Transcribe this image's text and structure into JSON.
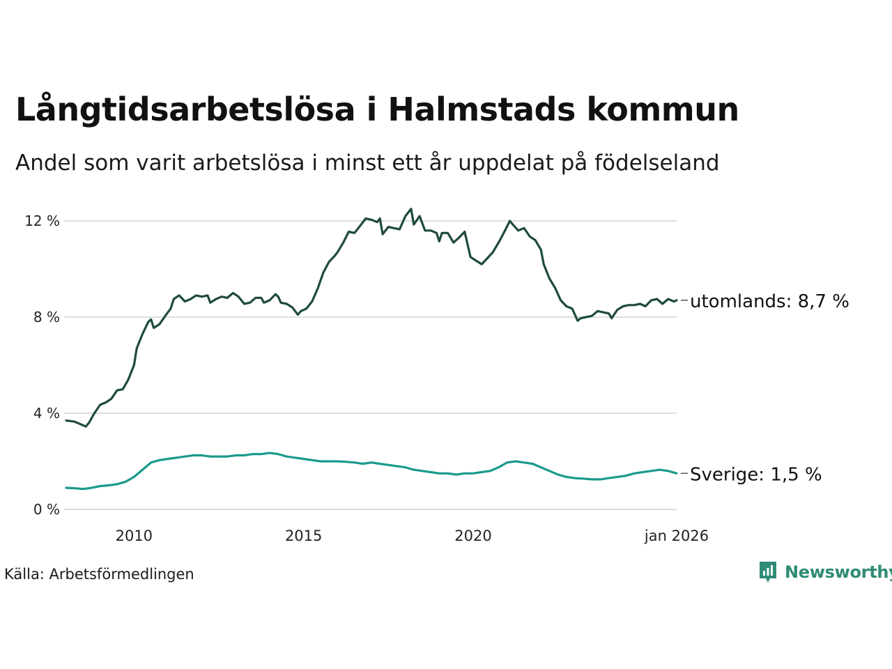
{
  "title": "Långtidsarbetslösa i Halmstads kommun",
  "subtitle": "Andel som varit arbetslösa i minst ett år uppdelat på födelseland",
  "source": "Källa: Arbetsförmedlingen",
  "brand": "Newsworthy",
  "colors": {
    "utomlands": "#1f4a3f",
    "sverige": "#1a9a8a",
    "grid": "#dddddd",
    "brand": "#2e8b76"
  },
  "chart_data": {
    "type": "line",
    "title": "Långtidsarbetslösa i Halmstads kommun",
    "subtitle": "Andel som varit arbetslösa i minst ett år uppdelat på födelseland",
    "xlabel": "",
    "ylabel": "",
    "x_range": [
      2008.0,
      2026.0
    ],
    "ylim": [
      0,
      12.5
    ],
    "y_ticks": [
      0,
      4,
      8,
      12
    ],
    "y_tick_labels": [
      "0 %",
      "4 %",
      "8 %",
      "12 %"
    ],
    "x_ticks": [
      2010,
      2015,
      2020,
      2026
    ],
    "x_tick_labels": [
      "2010",
      "2015",
      "2020",
      "jan 2026"
    ],
    "grid": true,
    "series": [
      {
        "name": "utomlands",
        "end_label": "utomlands: 8,7 %",
        "color": "#1f4a3f",
        "points": [
          [
            2008.0,
            3.7
          ],
          [
            2008.25,
            3.65
          ],
          [
            2008.5,
            3.5
          ],
          [
            2008.58,
            3.45
          ],
          [
            2008.67,
            3.6
          ],
          [
            2008.83,
            4.0
          ],
          [
            2009.0,
            4.35
          ],
          [
            2009.17,
            4.45
          ],
          [
            2009.33,
            4.6
          ],
          [
            2009.5,
            4.95
          ],
          [
            2009.67,
            5.0
          ],
          [
            2009.83,
            5.4
          ],
          [
            2010.0,
            6.0
          ],
          [
            2010.08,
            6.7
          ],
          [
            2010.25,
            7.3
          ],
          [
            2010.42,
            7.8
          ],
          [
            2010.5,
            7.9
          ],
          [
            2010.58,
            7.55
          ],
          [
            2010.75,
            7.7
          ],
          [
            2010.92,
            8.05
          ],
          [
            2011.08,
            8.35
          ],
          [
            2011.17,
            8.75
          ],
          [
            2011.33,
            8.9
          ],
          [
            2011.5,
            8.65
          ],
          [
            2011.67,
            8.75
          ],
          [
            2011.83,
            8.9
          ],
          [
            2012.0,
            8.85
          ],
          [
            2012.17,
            8.9
          ],
          [
            2012.25,
            8.6
          ],
          [
            2012.42,
            8.75
          ],
          [
            2012.58,
            8.85
          ],
          [
            2012.75,
            8.8
          ],
          [
            2012.92,
            9.0
          ],
          [
            2013.08,
            8.85
          ],
          [
            2013.25,
            8.55
          ],
          [
            2013.42,
            8.6
          ],
          [
            2013.58,
            8.8
          ],
          [
            2013.75,
            8.8
          ],
          [
            2013.83,
            8.6
          ],
          [
            2014.0,
            8.7
          ],
          [
            2014.17,
            8.95
          ],
          [
            2014.25,
            8.85
          ],
          [
            2014.33,
            8.6
          ],
          [
            2014.5,
            8.55
          ],
          [
            2014.67,
            8.4
          ],
          [
            2014.83,
            8.1
          ],
          [
            2014.92,
            8.25
          ],
          [
            2015.08,
            8.35
          ],
          [
            2015.25,
            8.65
          ],
          [
            2015.42,
            9.2
          ],
          [
            2015.58,
            9.85
          ],
          [
            2015.75,
            10.3
          ],
          [
            2015.92,
            10.55
          ],
          [
            2016.0,
            10.7
          ],
          [
            2016.17,
            11.1
          ],
          [
            2016.33,
            11.55
          ],
          [
            2016.5,
            11.5
          ],
          [
            2016.67,
            11.8
          ],
          [
            2016.83,
            12.1
          ],
          [
            2017.0,
            12.05
          ],
          [
            2017.17,
            11.95
          ],
          [
            2017.25,
            12.1
          ],
          [
            2017.33,
            11.45
          ],
          [
            2017.5,
            11.75
          ],
          [
            2017.67,
            11.7
          ],
          [
            2017.83,
            11.65
          ],
          [
            2018.0,
            12.2
          ],
          [
            2018.17,
            12.5
          ],
          [
            2018.25,
            11.85
          ],
          [
            2018.42,
            12.2
          ],
          [
            2018.58,
            11.6
          ],
          [
            2018.75,
            11.6
          ],
          [
            2018.92,
            11.5
          ],
          [
            2019.0,
            11.15
          ],
          [
            2019.08,
            11.5
          ],
          [
            2019.25,
            11.5
          ],
          [
            2019.42,
            11.1
          ],
          [
            2019.58,
            11.3
          ],
          [
            2019.75,
            11.55
          ],
          [
            2019.92,
            10.5
          ],
          [
            2020.08,
            10.35
          ],
          [
            2020.25,
            10.2
          ],
          [
            2020.42,
            10.45
          ],
          [
            2020.58,
            10.7
          ],
          [
            2020.75,
            11.1
          ],
          [
            2020.92,
            11.55
          ],
          [
            2021.08,
            12.0
          ],
          [
            2021.17,
            11.85
          ],
          [
            2021.33,
            11.6
          ],
          [
            2021.5,
            11.7
          ],
          [
            2021.67,
            11.35
          ],
          [
            2021.83,
            11.2
          ],
          [
            2022.0,
            10.8
          ],
          [
            2022.08,
            10.2
          ],
          [
            2022.25,
            9.6
          ],
          [
            2022.42,
            9.2
          ],
          [
            2022.58,
            8.7
          ],
          [
            2022.75,
            8.45
          ],
          [
            2022.92,
            8.35
          ],
          [
            2023.08,
            7.85
          ],
          [
            2023.17,
            7.95
          ],
          [
            2023.33,
            8.0
          ],
          [
            2023.5,
            8.05
          ],
          [
            2023.67,
            8.25
          ],
          [
            2023.83,
            8.2
          ],
          [
            2024.0,
            8.15
          ],
          [
            2024.08,
            7.95
          ],
          [
            2024.25,
            8.3
          ],
          [
            2024.42,
            8.45
          ],
          [
            2024.58,
            8.5
          ],
          [
            2024.75,
            8.5
          ],
          [
            2024.92,
            8.55
          ],
          [
            2025.08,
            8.45
          ],
          [
            2025.25,
            8.7
          ],
          [
            2025.42,
            8.75
          ],
          [
            2025.58,
            8.55
          ],
          [
            2025.75,
            8.75
          ],
          [
            2025.92,
            8.65
          ],
          [
            2026.0,
            8.7
          ]
        ]
      },
      {
        "name": "Sverige",
        "end_label": "Sverige: 1,5 %",
        "color": "#1a9a8a",
        "points": [
          [
            2008.0,
            0.9
          ],
          [
            2008.25,
            0.88
          ],
          [
            2008.5,
            0.85
          ],
          [
            2008.75,
            0.9
          ],
          [
            2009.0,
            0.97
          ],
          [
            2009.25,
            1.0
          ],
          [
            2009.5,
            1.05
          ],
          [
            2009.75,
            1.15
          ],
          [
            2010.0,
            1.35
          ],
          [
            2010.25,
            1.65
          ],
          [
            2010.5,
            1.95
          ],
          [
            2010.75,
            2.05
          ],
          [
            2011.0,
            2.1
          ],
          [
            2011.25,
            2.15
          ],
          [
            2011.5,
            2.2
          ],
          [
            2011.75,
            2.25
          ],
          [
            2012.0,
            2.25
          ],
          [
            2012.25,
            2.2
          ],
          [
            2012.5,
            2.2
          ],
          [
            2012.75,
            2.2
          ],
          [
            2013.0,
            2.25
          ],
          [
            2013.25,
            2.25
          ],
          [
            2013.5,
            2.3
          ],
          [
            2013.75,
            2.3
          ],
          [
            2014.0,
            2.35
          ],
          [
            2014.25,
            2.3
          ],
          [
            2014.5,
            2.2
          ],
          [
            2014.75,
            2.15
          ],
          [
            2015.0,
            2.1
          ],
          [
            2015.25,
            2.05
          ],
          [
            2015.5,
            2.0
          ],
          [
            2015.75,
            2.0
          ],
          [
            2016.0,
            2.0
          ],
          [
            2016.25,
            1.98
          ],
          [
            2016.5,
            1.95
          ],
          [
            2016.75,
            1.9
          ],
          [
            2017.0,
            1.95
          ],
          [
            2017.25,
            1.9
          ],
          [
            2017.5,
            1.85
          ],
          [
            2017.75,
            1.8
          ],
          [
            2018.0,
            1.75
          ],
          [
            2018.25,
            1.65
          ],
          [
            2018.5,
            1.6
          ],
          [
            2018.75,
            1.55
          ],
          [
            2019.0,
            1.5
          ],
          [
            2019.25,
            1.5
          ],
          [
            2019.5,
            1.45
          ],
          [
            2019.75,
            1.5
          ],
          [
            2020.0,
            1.5
          ],
          [
            2020.25,
            1.55
          ],
          [
            2020.5,
            1.6
          ],
          [
            2020.75,
            1.75
          ],
          [
            2021.0,
            1.95
          ],
          [
            2021.25,
            2.0
          ],
          [
            2021.5,
            1.95
          ],
          [
            2021.75,
            1.9
          ],
          [
            2022.0,
            1.75
          ],
          [
            2022.25,
            1.6
          ],
          [
            2022.5,
            1.45
          ],
          [
            2022.75,
            1.35
          ],
          [
            2023.0,
            1.3
          ],
          [
            2023.25,
            1.28
          ],
          [
            2023.5,
            1.25
          ],
          [
            2023.75,
            1.25
          ],
          [
            2024.0,
            1.3
          ],
          [
            2024.25,
            1.35
          ],
          [
            2024.5,
            1.4
          ],
          [
            2024.75,
            1.5
          ],
          [
            2025.0,
            1.55
          ],
          [
            2025.25,
            1.6
          ],
          [
            2025.5,
            1.65
          ],
          [
            2025.75,
            1.6
          ],
          [
            2026.0,
            1.5
          ]
        ]
      }
    ]
  }
}
